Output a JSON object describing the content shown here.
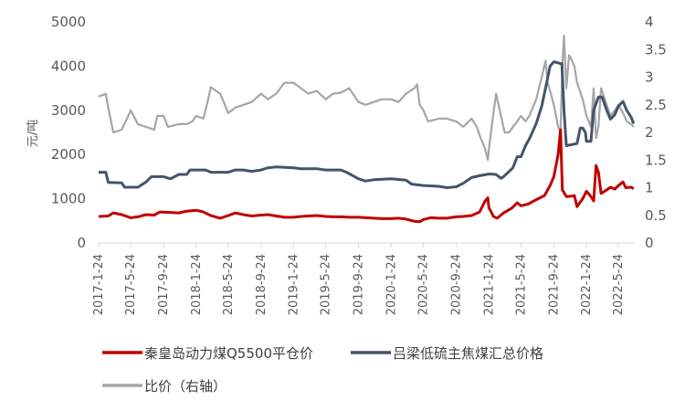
{
  "chart_data": {
    "type": "line",
    "ylabel": "元/吨",
    "ylim_left": [
      0,
      5000
    ],
    "ylim_right": [
      0,
      4
    ],
    "yticks_left": [
      "0",
      "1000",
      "2000",
      "3000",
      "4000",
      "5000"
    ],
    "yticks_right": [
      "0",
      "0.5",
      "1",
      "1.5",
      "2",
      "2.5",
      "3",
      "3.5",
      "4"
    ],
    "x_range": [
      "2017-01-24",
      "2022-07-24"
    ],
    "x_ticks": [
      "2017-1-24",
      "2017-5-24",
      "2017-9-24",
      "2018-1-24",
      "2018-5-24",
      "2018-9-24",
      "2019-1-24",
      "2019-5-24",
      "2019-9-24",
      "2020-1-24",
      "2020-5-24",
      "2020-9-24",
      "2021-1-24",
      "2021-5-24",
      "2021-9-24",
      "2022-1-24",
      "2022-5-24"
    ],
    "grid": false,
    "legend_position": "bottom-left",
    "series": [
      {
        "name": "秦皇岛动力煤Q5500平仓价",
        "color": "#c00000",
        "axis": "left",
        "points": [
          [
            "2017-01-24",
            600
          ],
          [
            "2017-03-01",
            610
          ],
          [
            "2017-03-20",
            680
          ],
          [
            "2017-04-20",
            640
          ],
          [
            "2017-05-24",
            570
          ],
          [
            "2017-06-20",
            590
          ],
          [
            "2017-07-20",
            640
          ],
          [
            "2017-08-20",
            630
          ],
          [
            "2017-09-10",
            700
          ],
          [
            "2017-10-20",
            690
          ],
          [
            "2017-11-20",
            680
          ],
          [
            "2017-12-20",
            720
          ],
          [
            "2018-01-24",
            740
          ],
          [
            "2018-02-20",
            700
          ],
          [
            "2018-03-20",
            620
          ],
          [
            "2018-04-24",
            560
          ],
          [
            "2018-05-24",
            620
          ],
          [
            "2018-06-20",
            680
          ],
          [
            "2018-07-20",
            640
          ],
          [
            "2018-08-20",
            610
          ],
          [
            "2018-09-24",
            630
          ],
          [
            "2018-10-20",
            640
          ],
          [
            "2018-11-20",
            610
          ],
          [
            "2018-12-20",
            580
          ],
          [
            "2019-01-24",
            580
          ],
          [
            "2019-02-20",
            600
          ],
          [
            "2019-03-20",
            610
          ],
          [
            "2019-04-20",
            620
          ],
          [
            "2019-05-24",
            600
          ],
          [
            "2019-06-20",
            590
          ],
          [
            "2019-07-20",
            590
          ],
          [
            "2019-08-20",
            580
          ],
          [
            "2019-09-24",
            580
          ],
          [
            "2019-10-20",
            570
          ],
          [
            "2019-11-20",
            560
          ],
          [
            "2019-12-20",
            550
          ],
          [
            "2020-01-24",
            550
          ],
          [
            "2020-02-20",
            560
          ],
          [
            "2020-03-20",
            540
          ],
          [
            "2020-04-20",
            490
          ],
          [
            "2020-05-10",
            480
          ],
          [
            "2020-05-24",
            530
          ],
          [
            "2020-06-20",
            570
          ],
          [
            "2020-07-20",
            560
          ],
          [
            "2020-08-20",
            560
          ],
          [
            "2020-09-24",
            590
          ],
          [
            "2020-10-20",
            600
          ],
          [
            "2020-11-20",
            620
          ],
          [
            "2020-12-20",
            700
          ],
          [
            "2021-01-10",
            950
          ],
          [
            "2021-01-20",
            1020
          ],
          [
            "2021-01-24",
            800
          ],
          [
            "2021-02-10",
            600
          ],
          [
            "2021-02-24",
            560
          ],
          [
            "2021-03-20",
            680
          ],
          [
            "2021-04-20",
            790
          ],
          [
            "2021-05-10",
            910
          ],
          [
            "2021-05-24",
            840
          ],
          [
            "2021-06-20",
            880
          ],
          [
            "2021-07-20",
            980
          ],
          [
            "2021-08-20",
            1070
          ],
          [
            "2021-09-10",
            1300
          ],
          [
            "2021-09-24",
            1500
          ],
          [
            "2021-10-10",
            2000
          ],
          [
            "2021-10-19",
            2560
          ],
          [
            "2021-10-26",
            1200
          ],
          [
            "2021-11-10",
            1050
          ],
          [
            "2021-12-01",
            1060
          ],
          [
            "2021-12-10",
            1070
          ],
          [
            "2021-12-20",
            820
          ],
          [
            "2022-01-10",
            1000
          ],
          [
            "2022-01-24",
            1170
          ],
          [
            "2022-02-10",
            1050
          ],
          [
            "2022-02-20",
            950
          ],
          [
            "2022-03-01",
            1750
          ],
          [
            "2022-03-10",
            1600
          ],
          [
            "2022-03-20",
            1120
          ],
          [
            "2022-04-10",
            1200
          ],
          [
            "2022-04-24",
            1260
          ],
          [
            "2022-05-10",
            1220
          ],
          [
            "2022-05-24",
            1300
          ],
          [
            "2022-06-10",
            1380
          ],
          [
            "2022-06-20",
            1250
          ],
          [
            "2022-07-10",
            1260
          ],
          [
            "2022-07-20",
            1230
          ]
        ]
      },
      {
        "name": "吕梁低硫主焦煤汇总价格",
        "color": "#44546a",
        "axis": "left",
        "points": [
          [
            "2017-01-24",
            1600
          ],
          [
            "2017-02-20",
            1600
          ],
          [
            "2017-03-01",
            1370
          ],
          [
            "2017-04-20",
            1360
          ],
          [
            "2017-05-01",
            1260
          ],
          [
            "2017-06-20",
            1260
          ],
          [
            "2017-07-20",
            1380
          ],
          [
            "2017-08-10",
            1500
          ],
          [
            "2017-09-24",
            1500
          ],
          [
            "2017-10-20",
            1450
          ],
          [
            "2017-11-20",
            1550
          ],
          [
            "2017-12-20",
            1550
          ],
          [
            "2018-01-01",
            1650
          ],
          [
            "2018-03-01",
            1650
          ],
          [
            "2018-03-20",
            1600
          ],
          [
            "2018-05-24",
            1600
          ],
          [
            "2018-06-20",
            1650
          ],
          [
            "2018-07-20",
            1650
          ],
          [
            "2018-08-20",
            1620
          ],
          [
            "2018-09-24",
            1650
          ],
          [
            "2018-10-20",
            1700
          ],
          [
            "2018-11-20",
            1720
          ],
          [
            "2019-01-24",
            1700
          ],
          [
            "2019-02-20",
            1680
          ],
          [
            "2019-04-20",
            1680
          ],
          [
            "2019-05-24",
            1650
          ],
          [
            "2019-07-20",
            1650
          ],
          [
            "2019-08-10",
            1600
          ],
          [
            "2019-09-24",
            1450
          ],
          [
            "2019-10-20",
            1400
          ],
          [
            "2019-11-20",
            1430
          ],
          [
            "2020-01-24",
            1450
          ],
          [
            "2020-03-20",
            1420
          ],
          [
            "2020-04-10",
            1330
          ],
          [
            "2020-05-24",
            1300
          ],
          [
            "2020-07-20",
            1280
          ],
          [
            "2020-08-20",
            1250
          ],
          [
            "2020-09-24",
            1270
          ],
          [
            "2020-10-20",
            1350
          ],
          [
            "2020-11-20",
            1480
          ],
          [
            "2020-12-20",
            1520
          ],
          [
            "2021-01-24",
            1560
          ],
          [
            "2021-02-20",
            1550
          ],
          [
            "2021-03-10",
            1460
          ],
          [
            "2021-03-20",
            1500
          ],
          [
            "2021-04-24",
            1700
          ],
          [
            "2021-05-10",
            1950
          ],
          [
            "2021-05-24",
            1950
          ],
          [
            "2021-06-10",
            2200
          ],
          [
            "2021-06-24",
            2350
          ],
          [
            "2021-07-20",
            2700
          ],
          [
            "2021-08-10",
            3100
          ],
          [
            "2021-08-24",
            3500
          ],
          [
            "2021-09-10",
            4000
          ],
          [
            "2021-09-24",
            4100
          ],
          [
            "2021-10-24",
            4050
          ],
          [
            "2021-11-01",
            3000
          ],
          [
            "2021-11-10",
            2200
          ],
          [
            "2021-12-20",
            2250
          ],
          [
            "2022-01-01",
            2600
          ],
          [
            "2022-01-10",
            2600
          ],
          [
            "2022-01-20",
            2500
          ],
          [
            "2022-01-24",
            2300
          ],
          [
            "2022-02-10",
            2300
          ],
          [
            "2022-02-20",
            3000
          ],
          [
            "2022-03-10",
            3300
          ],
          [
            "2022-03-24",
            3300
          ],
          [
            "2022-04-10",
            3000
          ],
          [
            "2022-04-24",
            2800
          ],
          [
            "2022-05-10",
            2900
          ],
          [
            "2022-05-24",
            3100
          ],
          [
            "2022-06-10",
            3200
          ],
          [
            "2022-06-24",
            3000
          ],
          [
            "2022-07-10",
            2850
          ],
          [
            "2022-07-20",
            2700
          ]
        ]
      },
      {
        "name": "比价（右轴）",
        "color": "#a6a6a6",
        "axis": "right",
        "points": [
          [
            "2017-01-24",
            2.65
          ],
          [
            "2017-02-20",
            2.7
          ],
          [
            "2017-03-01",
            2.45
          ],
          [
            "2017-03-20",
            2.0
          ],
          [
            "2017-04-20",
            2.05
          ],
          [
            "2017-05-10",
            2.25
          ],
          [
            "2017-05-24",
            2.4
          ],
          [
            "2017-06-20",
            2.15
          ],
          [
            "2017-07-20",
            2.1
          ],
          [
            "2017-08-20",
            2.05
          ],
          [
            "2017-09-01",
            2.3
          ],
          [
            "2017-09-24",
            2.3
          ],
          [
            "2017-10-10",
            2.1
          ],
          [
            "2017-11-20",
            2.15
          ],
          [
            "2017-12-20",
            2.15
          ],
          [
            "2018-01-10",
            2.2
          ],
          [
            "2018-01-24",
            2.3
          ],
          [
            "2018-02-20",
            2.25
          ],
          [
            "2018-03-10",
            2.6
          ],
          [
            "2018-03-20",
            2.82
          ],
          [
            "2018-04-24",
            2.7
          ],
          [
            "2018-05-24",
            2.35
          ],
          [
            "2018-06-20",
            2.45
          ],
          [
            "2018-07-20",
            2.5
          ],
          [
            "2018-08-20",
            2.55
          ],
          [
            "2018-09-24",
            2.7
          ],
          [
            "2018-10-20",
            2.6
          ],
          [
            "2018-11-20",
            2.7
          ],
          [
            "2018-12-20",
            2.9
          ],
          [
            "2019-01-24",
            2.9
          ],
          [
            "2019-02-20",
            2.8
          ],
          [
            "2019-03-20",
            2.7
          ],
          [
            "2019-04-20",
            2.75
          ],
          [
            "2019-05-24",
            2.6
          ],
          [
            "2019-06-20",
            2.7
          ],
          [
            "2019-07-20",
            2.72
          ],
          [
            "2019-08-20",
            2.8
          ],
          [
            "2019-09-24",
            2.55
          ],
          [
            "2019-10-20",
            2.5
          ],
          [
            "2019-11-20",
            2.55
          ],
          [
            "2019-12-20",
            2.6
          ],
          [
            "2020-01-24",
            2.6
          ],
          [
            "2020-02-20",
            2.55
          ],
          [
            "2020-03-20",
            2.7
          ],
          [
            "2020-04-20",
            2.8
          ],
          [
            "2020-04-30",
            2.87
          ],
          [
            "2020-05-10",
            2.5
          ],
          [
            "2020-05-24",
            2.4
          ],
          [
            "2020-06-10",
            2.2
          ],
          [
            "2020-07-20",
            2.25
          ],
          [
            "2020-08-20",
            2.25
          ],
          [
            "2020-09-24",
            2.2
          ],
          [
            "2020-10-20",
            2.1
          ],
          [
            "2020-11-20",
            2.25
          ],
          [
            "2020-12-10",
            2.1
          ],
          [
            "2020-12-20",
            1.95
          ],
          [
            "2021-01-10",
            1.7
          ],
          [
            "2021-01-20",
            1.5
          ],
          [
            "2021-01-24",
            1.7
          ],
          [
            "2021-02-10",
            2.35
          ],
          [
            "2021-02-20",
            2.7
          ],
          [
            "2021-03-10",
            2.3
          ],
          [
            "2021-03-24",
            2.0
          ],
          [
            "2021-04-10",
            2.0
          ],
          [
            "2021-04-24",
            2.1
          ],
          [
            "2021-05-10",
            2.2
          ],
          [
            "2021-05-24",
            2.3
          ],
          [
            "2021-06-10",
            2.2
          ],
          [
            "2021-06-24",
            2.3
          ],
          [
            "2021-07-20",
            2.6
          ],
          [
            "2021-08-10",
            3.0
          ],
          [
            "2021-08-24",
            3.3
          ],
          [
            "2021-09-01",
            2.9
          ],
          [
            "2021-09-10",
            2.75
          ],
          [
            "2021-09-24",
            2.5
          ],
          [
            "2021-10-10",
            2.1
          ],
          [
            "2021-10-19",
            2.0
          ],
          [
            "2021-10-26",
            3.2
          ],
          [
            "2021-11-01",
            3.75
          ],
          [
            "2021-11-10",
            2.8
          ],
          [
            "2021-11-20",
            3.4
          ],
          [
            "2021-12-01",
            3.3
          ],
          [
            "2021-12-10",
            3.2
          ],
          [
            "2021-12-20",
            2.9
          ],
          [
            "2022-01-10",
            2.6
          ],
          [
            "2022-01-24",
            2.3
          ],
          [
            "2022-02-10",
            2.1
          ],
          [
            "2022-02-20",
            2.8
          ],
          [
            "2022-03-01",
            1.9
          ],
          [
            "2022-03-10",
            2.1
          ],
          [
            "2022-03-20",
            2.8
          ],
          [
            "2022-04-10",
            2.5
          ],
          [
            "2022-04-24",
            2.3
          ],
          [
            "2022-05-10",
            2.4
          ],
          [
            "2022-05-24",
            2.5
          ],
          [
            "2022-06-10",
            2.35
          ],
          [
            "2022-06-24",
            2.2
          ],
          [
            "2022-07-10",
            2.15
          ],
          [
            "2022-07-20",
            2.1
          ]
        ]
      }
    ]
  }
}
